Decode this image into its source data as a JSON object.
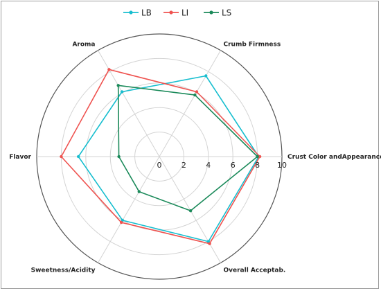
{
  "chart_data": {
    "type": "radar",
    "axes": [
      "Crust Color andAppearance",
      "Crumb Firmness",
      "Aroma",
      "Flavor",
      "Sweetness/Acidity",
      "Overall Acceptab."
    ],
    "radial_range": [
      0,
      10
    ],
    "radial_ticks": [
      "0",
      "2",
      "4",
      "6",
      "8",
      "10"
    ],
    "grid": true,
    "legend_position": "top-center",
    "series": [
      {
        "name": "LB",
        "color": "#17becf",
        "values": [
          8.1,
          7.6,
          6.1,
          6.6,
          6.0,
          8.0
        ]
      },
      {
        "name": "LI",
        "color": "#ef5350",
        "values": [
          8.2,
          6.1,
          8.2,
          8.0,
          6.2,
          8.2
        ]
      },
      {
        "name": "LS",
        "color": "#1b8a5a",
        "values": [
          8.0,
          5.8,
          6.7,
          3.3,
          3.3,
          5.1
        ]
      }
    ]
  }
}
